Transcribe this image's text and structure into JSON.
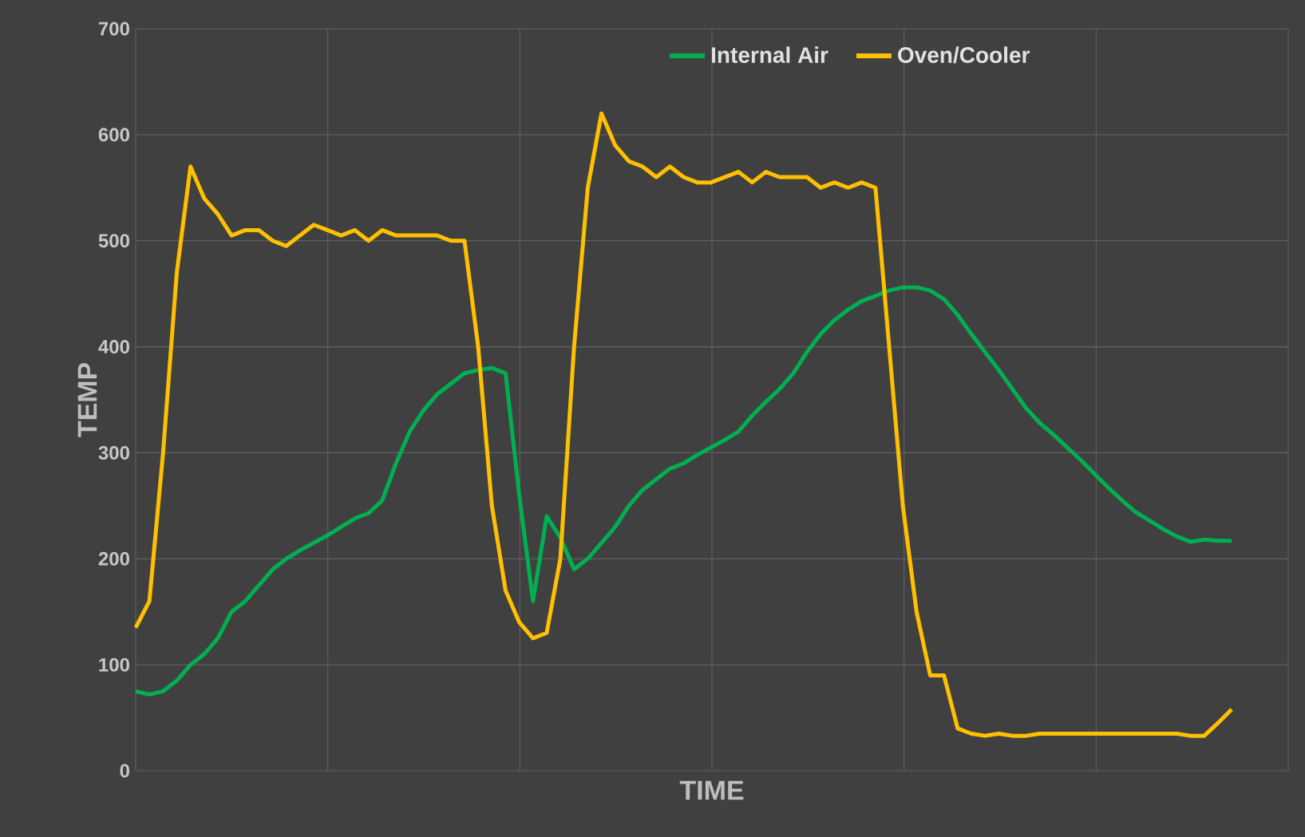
{
  "chart_data": {
    "type": "line",
    "xlabel": "TIME",
    "ylabel": "TEMP",
    "categories": [
      null,
      null,
      null,
      null,
      null,
      null,
      null,
      null,
      null,
      null,
      null,
      null,
      null,
      null,
      null,
      null,
      null,
      null,
      null,
      null,
      null,
      null,
      null,
      null,
      null,
      null,
      null,
      null,
      null,
      null,
      null,
      null,
      null,
      null,
      null,
      null,
      null,
      null,
      null,
      null,
      null,
      null,
      null,
      null,
      null,
      null,
      null,
      null,
      null,
      null,
      null,
      null,
      null,
      null,
      null,
      null,
      null,
      null,
      null,
      null,
      null,
      null,
      null,
      null,
      null,
      null,
      null,
      null,
      null,
      null,
      null,
      null,
      null,
      null,
      null,
      null,
      null,
      null,
      null,
      null,
      null
    ],
    "series": [
      {
        "name": "Internal Air",
        "color": "#00b050",
        "values": [
          75,
          72,
          75,
          85,
          100,
          110,
          125,
          150,
          160,
          175,
          190,
          200,
          208,
          215,
          222,
          230,
          238,
          243,
          255,
          290,
          320,
          340,
          355,
          365,
          375,
          378,
          380,
          375,
          260,
          160,
          240,
          220,
          190,
          200,
          215,
          230,
          250,
          265,
          275,
          285,
          290,
          298,
          305,
          312,
          320,
          335,
          348,
          360,
          375,
          395,
          412,
          425,
          435,
          443,
          448,
          453,
          456,
          456,
          453,
          445,
          430,
          412,
          395,
          378,
          360,
          342,
          328,
          317,
          305,
          293,
          280,
          267,
          255,
          244,
          236,
          228,
          221,
          216,
          218,
          217,
          217
        ]
      },
      {
        "name": "Oven/Cooler",
        "color": "#ffc000",
        "values": [
          135,
          160,
          300,
          470,
          570,
          540,
          525,
          505,
          510,
          510,
          500,
          495,
          505,
          515,
          510,
          505,
          510,
          500,
          510,
          505,
          505,
          505,
          505,
          500,
          500,
          400,
          250,
          170,
          140,
          125,
          130,
          200,
          400,
          550,
          620,
          590,
          575,
          570,
          560,
          570,
          560,
          555,
          555,
          560,
          565,
          555,
          565,
          560,
          560,
          560,
          550,
          555,
          550,
          555,
          550,
          400,
          250,
          150,
          90,
          90,
          40,
          35,
          33,
          35,
          33,
          33,
          35,
          35,
          35,
          35,
          35,
          35,
          35,
          35,
          35,
          35,
          35,
          33,
          33,
          45,
          58
        ]
      }
    ],
    "ylim": [
      0,
      700
    ],
    "yticks": [
      0,
      100,
      200,
      300,
      400,
      500,
      600,
      700
    ],
    "grid": true,
    "legend": "top"
  }
}
